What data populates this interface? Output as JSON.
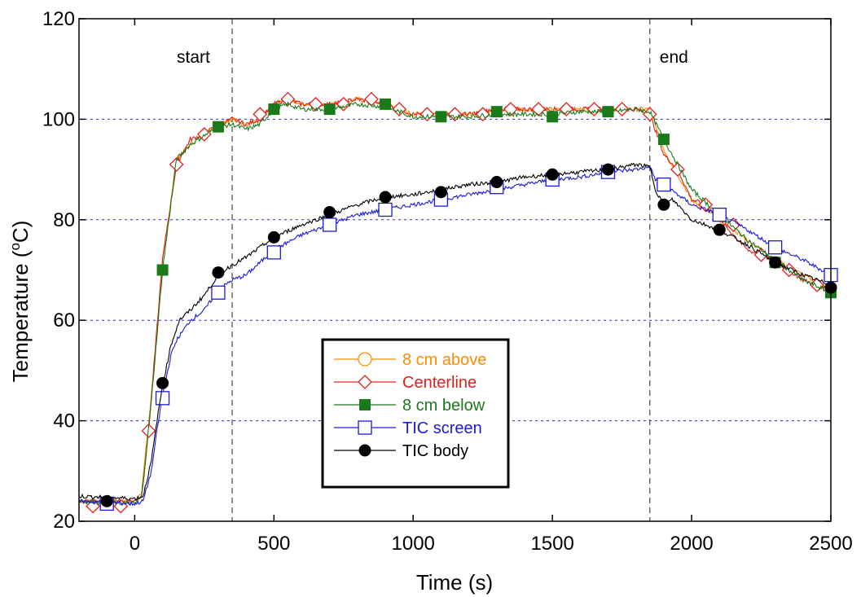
{
  "chart_data": {
    "type": "line",
    "xlabel": "Time (s)",
    "ylabel_main": "Temperature (",
    "ylabel_sup": "o",
    "ylabel_end": "C)",
    "xlim": [
      -200,
      2500
    ],
    "ylim": [
      20,
      120
    ],
    "x_ticks": [
      0,
      500,
      1000,
      1500,
      2000,
      2500
    ],
    "y_ticks": [
      20,
      40,
      60,
      80,
      100,
      120
    ],
    "grid": "horizontal dotted blue",
    "legend_placement": "lower-center",
    "annotations": [
      {
        "text": "start",
        "x": 350
      },
      {
        "text": "end",
        "x": 1850
      }
    ],
    "series": [
      {
        "name": "8 cm above",
        "color": "#ff8c00",
        "marker": "open-circle",
        "points": [
          [
            -200,
            24
          ],
          [
            0,
            24
          ],
          [
            25,
            26
          ],
          [
            60,
            45
          ],
          [
            100,
            72
          ],
          [
            150,
            92
          ],
          [
            200,
            95
          ],
          [
            300,
            99
          ],
          [
            350,
            100
          ],
          [
            400,
            99
          ],
          [
            450,
            100
          ],
          [
            500,
            103
          ],
          [
            550,
            104
          ],
          [
            600,
            103
          ],
          [
            700,
            103
          ],
          [
            800,
            104
          ],
          [
            900,
            103
          ],
          [
            1000,
            101
          ],
          [
            1100,
            101
          ],
          [
            1200,
            101
          ],
          [
            1300,
            102
          ],
          [
            1400,
            102
          ],
          [
            1500,
            102
          ],
          [
            1600,
            102
          ],
          [
            1700,
            102
          ],
          [
            1800,
            102
          ],
          [
            1850,
            102
          ],
          [
            1900,
            94
          ],
          [
            2000,
            84
          ],
          [
            2100,
            80
          ],
          [
            2200,
            76
          ],
          [
            2300,
            72
          ],
          [
            2400,
            69
          ],
          [
            2500,
            66
          ]
        ],
        "markers": []
      },
      {
        "name": "Centerline",
        "color": "#e0201c",
        "marker": "open-diamond",
        "points": [
          [
            -200,
            24
          ],
          [
            0,
            24
          ],
          [
            25,
            25
          ],
          [
            50,
            38
          ],
          [
            100,
            72
          ],
          [
            150,
            91
          ],
          [
            200,
            96
          ],
          [
            250,
            97
          ],
          [
            300,
            99
          ],
          [
            350,
            100
          ],
          [
            400,
            99
          ],
          [
            450,
            100
          ],
          [
            500,
            103
          ],
          [
            550,
            104
          ],
          [
            600,
            103
          ],
          [
            700,
            103
          ],
          [
            800,
            104
          ],
          [
            900,
            103
          ],
          [
            1000,
            101
          ],
          [
            1100,
            101
          ],
          [
            1200,
            101
          ],
          [
            1300,
            102
          ],
          [
            1400,
            102
          ],
          [
            1500,
            102
          ],
          [
            1600,
            102
          ],
          [
            1700,
            102
          ],
          [
            1800,
            102
          ],
          [
            1850,
            101
          ],
          [
            1900,
            93
          ],
          [
            1950,
            90
          ],
          [
            2000,
            84
          ],
          [
            2050,
            83
          ],
          [
            2100,
            80
          ],
          [
            2200,
            74
          ],
          [
            2300,
            72
          ],
          [
            2400,
            68
          ],
          [
            2450,
            67
          ],
          [
            2500,
            66
          ]
        ],
        "markers": [
          [
            -150,
            23
          ],
          [
            -50,
            23
          ],
          [
            50,
            38
          ],
          [
            150,
            91
          ],
          [
            250,
            97
          ],
          [
            450,
            101
          ],
          [
            550,
            104
          ],
          [
            650,
            103
          ],
          [
            750,
            103
          ],
          [
            850,
            104
          ],
          [
            950,
            102
          ],
          [
            1050,
            101
          ],
          [
            1150,
            101
          ],
          [
            1250,
            101
          ],
          [
            1350,
            102
          ],
          [
            1450,
            102
          ],
          [
            1550,
            102
          ],
          [
            1650,
            102
          ],
          [
            1750,
            102
          ],
          [
            1850,
            101
          ],
          [
            1950,
            90
          ],
          [
            2050,
            83
          ],
          [
            2150,
            79
          ],
          [
            2250,
            73
          ],
          [
            2350,
            70
          ],
          [
            2450,
            67
          ]
        ]
      },
      {
        "name": "8 cm below",
        "color": "#1a7a1a",
        "marker": "filled-square",
        "points": [
          [
            -200,
            24
          ],
          [
            0,
            23.5
          ],
          [
            25,
            25
          ],
          [
            60,
            44
          ],
          [
            100,
            70
          ],
          [
            150,
            92
          ],
          [
            200,
            95
          ],
          [
            300,
            98.5
          ],
          [
            350,
            99
          ],
          [
            400,
            98
          ],
          [
            450,
            99
          ],
          [
            500,
            102
          ],
          [
            550,
            103
          ],
          [
            600,
            102
          ],
          [
            700,
            102
          ],
          [
            800,
            103
          ],
          [
            900,
            102.5
          ],
          [
            1000,
            100.5
          ],
          [
            1100,
            100.5
          ],
          [
            1200,
            100.5
          ],
          [
            1300,
            101
          ],
          [
            1400,
            101
          ],
          [
            1500,
            101
          ],
          [
            1600,
            101.5
          ],
          [
            1700,
            101.5
          ],
          [
            1800,
            102
          ],
          [
            1850,
            101.5
          ],
          [
            1900,
            96
          ],
          [
            2000,
            86
          ],
          [
            2100,
            81
          ],
          [
            2200,
            76
          ],
          [
            2300,
            72
          ],
          [
            2400,
            68
          ],
          [
            2500,
            65.5
          ]
        ],
        "markers": [
          [
            -100,
            23.5
          ],
          [
            100,
            70
          ],
          [
            300,
            98.5
          ],
          [
            500,
            102
          ],
          [
            700,
            102
          ],
          [
            900,
            103
          ],
          [
            1100,
            100.5
          ],
          [
            1300,
            101.5
          ],
          [
            1500,
            100.5
          ],
          [
            1700,
            101.5
          ],
          [
            1900,
            96
          ],
          [
            2100,
            81
          ],
          [
            2300,
            71.5
          ],
          [
            2500,
            65.5
          ]
        ]
      },
      {
        "name": "TIC screen",
        "color": "#1a1adb",
        "marker": "open-square",
        "points": [
          [
            -200,
            24
          ],
          [
            0,
            23.5
          ],
          [
            30,
            24
          ],
          [
            60,
            30
          ],
          [
            80,
            38
          ],
          [
            100,
            45
          ],
          [
            130,
            53
          ],
          [
            150,
            56
          ],
          [
            200,
            60
          ],
          [
            250,
            62
          ],
          [
            300,
            66
          ],
          [
            350,
            68
          ],
          [
            400,
            69
          ],
          [
            500,
            74
          ],
          [
            600,
            77
          ],
          [
            700,
            79
          ],
          [
            800,
            81
          ],
          [
            900,
            82
          ],
          [
            1000,
            83
          ],
          [
            1100,
            84
          ],
          [
            1200,
            85
          ],
          [
            1300,
            86
          ],
          [
            1400,
            87
          ],
          [
            1500,
            88
          ],
          [
            1600,
            88.5
          ],
          [
            1700,
            89.5
          ],
          [
            1800,
            90
          ],
          [
            1850,
            90.5
          ],
          [
            1870,
            88
          ],
          [
            1900,
            87
          ],
          [
            1950,
            85
          ],
          [
            2000,
            83
          ],
          [
            2100,
            81
          ],
          [
            2200,
            78
          ],
          [
            2300,
            74.5
          ],
          [
            2400,
            72
          ],
          [
            2500,
            69
          ]
        ],
        "markers": [
          [
            -100,
            23.5
          ],
          [
            100,
            44.5
          ],
          [
            300,
            65.5
          ],
          [
            500,
            73.5
          ],
          [
            700,
            79
          ],
          [
            900,
            82
          ],
          [
            1100,
            84
          ],
          [
            1300,
            86.5
          ],
          [
            1500,
            88
          ],
          [
            1700,
            89.5
          ],
          [
            1900,
            87
          ],
          [
            2100,
            81
          ],
          [
            2300,
            74.5
          ],
          [
            2500,
            69
          ]
        ]
      },
      {
        "name": "TIC body",
        "color": "#000000",
        "marker": "filled-circle",
        "points": [
          [
            -200,
            25
          ],
          [
            0,
            24.5
          ],
          [
            30,
            25
          ],
          [
            60,
            32
          ],
          [
            80,
            40
          ],
          [
            100,
            47
          ],
          [
            130,
            55
          ],
          [
            160,
            60
          ],
          [
            200,
            62
          ],
          [
            250,
            65
          ],
          [
            300,
            69
          ],
          [
            350,
            71
          ],
          [
            400,
            72.5
          ],
          [
            500,
            76.5
          ],
          [
            600,
            79
          ],
          [
            700,
            81
          ],
          [
            800,
            83
          ],
          [
            900,
            84.5
          ],
          [
            1000,
            85
          ],
          [
            1100,
            86
          ],
          [
            1200,
            87
          ],
          [
            1300,
            87.5
          ],
          [
            1400,
            88.5
          ],
          [
            1500,
            89
          ],
          [
            1600,
            89.5
          ],
          [
            1700,
            90
          ],
          [
            1800,
            91
          ],
          [
            1850,
            90.5
          ],
          [
            1870,
            86
          ],
          [
            1900,
            83
          ],
          [
            1930,
            84
          ],
          [
            1950,
            83
          ],
          [
            2000,
            80
          ],
          [
            2100,
            78
          ],
          [
            2200,
            75
          ],
          [
            2300,
            71.5
          ],
          [
            2400,
            69
          ],
          [
            2500,
            67
          ]
        ],
        "markers": [
          [
            -100,
            24
          ],
          [
            100,
            47.5
          ],
          [
            300,
            69.5
          ],
          [
            500,
            76.5
          ],
          [
            700,
            81.5
          ],
          [
            900,
            84.5
          ],
          [
            1100,
            85.5
          ],
          [
            1300,
            87.5
          ],
          [
            1500,
            89
          ],
          [
            1700,
            90
          ],
          [
            1900,
            83
          ],
          [
            2100,
            78
          ],
          [
            2300,
            71.5
          ],
          [
            2500,
            66.5
          ]
        ]
      }
    ]
  }
}
